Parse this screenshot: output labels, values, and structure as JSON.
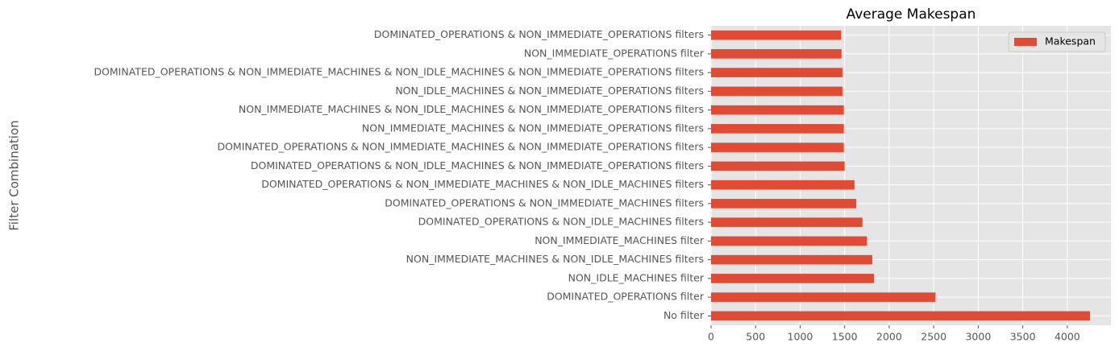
{
  "chart_data": {
    "type": "barh",
    "title": "Average Makespan",
    "ylabel": "Filter Combination",
    "categories": [
      "No filter",
      "DOMINATED_OPERATIONS filter",
      "NON_IDLE_MACHINES filter",
      "NON_IMMEDIATE_MACHINES & NON_IDLE_MACHINES filters",
      "NON_IMMEDIATE_MACHINES filter",
      "DOMINATED_OPERATIONS & NON_IDLE_MACHINES filters",
      "DOMINATED_OPERATIONS & NON_IMMEDIATE_MACHINES filters",
      "DOMINATED_OPERATIONS & NON_IMMEDIATE_MACHINES & NON_IDLE_MACHINES filters",
      "DOMINATED_OPERATIONS & NON_IDLE_MACHINES & NON_IMMEDIATE_OPERATIONS filters",
      "DOMINATED_OPERATIONS & NON_IMMEDIATE_MACHINES & NON_IMMEDIATE_OPERATIONS filters",
      "NON_IMMEDIATE_MACHINES & NON_IMMEDIATE_OPERATIONS filters",
      "NON_IMMEDIATE_MACHINES & NON_IDLE_MACHINES & NON_IMMEDIATE_OPERATIONS filters",
      "NON_IDLE_MACHINES & NON_IMMEDIATE_OPERATIONS filters",
      "DOMINATED_OPERATIONS & NON_IMMEDIATE_MACHINES & NON_IDLE_MACHINES & NON_IMMEDIATE_OPERATIONS filters",
      "NON_IMMEDIATE_OPERATIONS filter",
      "DOMINATED_OPERATIONS & NON_IMMEDIATE_OPERATIONS filters"
    ],
    "series": [
      {
        "name": "Makespan",
        "color": "#E24A33",
        "values": [
          4255,
          2520,
          1830,
          1810,
          1750,
          1700,
          1630,
          1610,
          1500,
          1490,
          1490,
          1490,
          1475,
          1475,
          1465,
          1460
        ]
      }
    ],
    "xlim": [
      0,
      4490
    ],
    "xticks": [
      0,
      500,
      1000,
      1500,
      2000,
      2500,
      3000,
      3500,
      4000
    ],
    "grid": true,
    "legend": "upper right"
  }
}
